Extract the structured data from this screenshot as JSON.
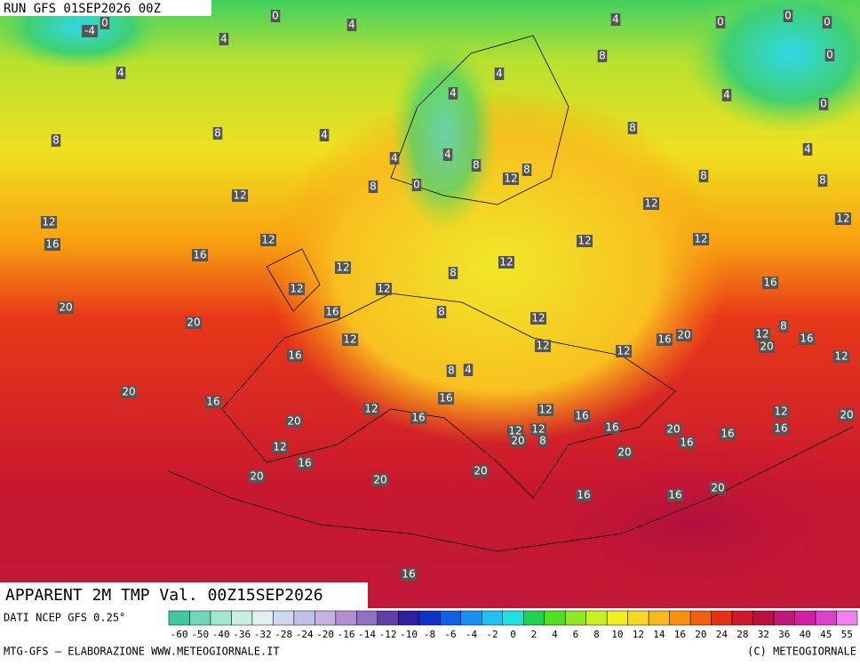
{
  "header": {
    "run": "RUN GFS 01SEP2026 00Z"
  },
  "map": {
    "title": "APPARENT 2M TMP Val. 00Z15SEP2026",
    "labels": [
      0,
      0,
      -4,
      4,
      4,
      0,
      0,
      0,
      4,
      8,
      0,
      4,
      4,
      4,
      4,
      0,
      8,
      8,
      4,
      8,
      4,
      4,
      4,
      8,
      8,
      12,
      0,
      8,
      8,
      8,
      12,
      12,
      12,
      12,
      16,
      12,
      12,
      12,
      16,
      12,
      12,
      8,
      12,
      12,
      16,
      20,
      16,
      8,
      20,
      12,
      8,
      12,
      20,
      16,
      16,
      12,
      12,
      20,
      16,
      12,
      12,
      8,
      4,
      20,
      16,
      16,
      12,
      12,
      12,
      16,
      20,
      16,
      20,
      12,
      16,
      20,
      16,
      12,
      16,
      20,
      8,
      16,
      12,
      20,
      16,
      20,
      20,
      20,
      20,
      16,
      16,
      16
    ]
  },
  "footer": {
    "source": "DATI NCEP GFS 0.25°",
    "credit": "MTG-GFS — ELABORAZIONE WWW.METEOGIORNALE.IT",
    "copyright": "(C) METEOGIORNALE"
  },
  "scale": {
    "labels": [
      -60,
      -50,
      -40,
      -36,
      -32,
      -28,
      -24,
      -20,
      -16,
      -14,
      -12,
      -10,
      -8,
      -6,
      -4,
      -2,
      0,
      2,
      4,
      6,
      8,
      10,
      12,
      14,
      16,
      20,
      24,
      28,
      32,
      36,
      40,
      45,
      55
    ],
    "colors": [
      "#40c8a0",
      "#70d8b8",
      "#a0e8d0",
      "#c8f0e0",
      "#e0f0f0",
      "#d0d8f0",
      "#c0c0e8",
      "#c8b0e0",
      "#b090d0",
      "#9070c0",
      "#6040a8",
      "#3020a0",
      "#1030c8",
      "#1060e0",
      "#1890f0",
      "#20c0f0",
      "#20e0e0",
      "#20d050",
      "#50e020",
      "#90e820",
      "#c8f020",
      "#f0f020",
      "#f8d820",
      "#f8b820",
      "#f89010",
      "#f06010",
      "#e83010",
      "#d01828",
      "#b81040",
      "#c01878",
      "#d020a8",
      "#e040d0",
      "#f080f0"
    ]
  }
}
